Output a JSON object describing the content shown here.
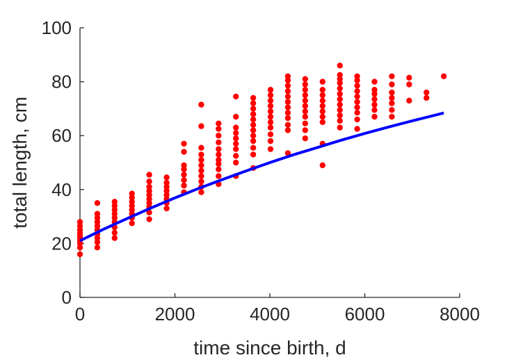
{
  "chart_data": {
    "type": "scatter",
    "title": "",
    "xlabel": "time since birth, d",
    "ylabel": "total length, cm",
    "xlim": [
      0,
      8000
    ],
    "ylim": [
      0,
      100
    ],
    "xticks": [
      0,
      2000,
      4000,
      6000,
      8000
    ],
    "yticks": [
      0,
      20,
      40,
      60,
      80,
      100
    ],
    "x_tick_labels": [
      "0",
      "2000",
      "4000",
      "6000",
      "8000"
    ],
    "y_tick_labels": [
      "0",
      "20",
      "40",
      "60",
      "80",
      "100"
    ],
    "grid": false,
    "legend": "none",
    "colors": {
      "points": "#ff0000",
      "curve": "#0000ff",
      "axes": "#262626",
      "background": "#ffffff"
    },
    "series": [
      {
        "kind": "points",
        "points": [
          [
            0,
            16.0
          ],
          [
            0,
            18.5
          ],
          [
            0,
            20.0
          ],
          [
            0,
            21.0
          ],
          [
            0,
            22.0
          ],
          [
            0,
            23.0
          ],
          [
            0,
            24.0
          ],
          [
            0,
            25.0
          ],
          [
            0,
            26.5
          ],
          [
            0,
            28.0
          ],
          [
            365,
            18.5
          ],
          [
            365,
            20.5
          ],
          [
            365,
            22.0
          ],
          [
            365,
            23.5
          ],
          [
            365,
            25.0
          ],
          [
            365,
            26.5
          ],
          [
            365,
            28.0
          ],
          [
            365,
            29.5
          ],
          [
            365,
            31.0
          ],
          [
            365,
            35.0
          ],
          [
            730,
            22.0
          ],
          [
            730,
            24.0
          ],
          [
            730,
            26.0
          ],
          [
            730,
            28.0
          ],
          [
            730,
            29.5
          ],
          [
            730,
            31.0
          ],
          [
            730,
            32.5
          ],
          [
            730,
            34.0
          ],
          [
            730,
            35.5
          ],
          [
            1095,
            27.5
          ],
          [
            1095,
            29.5
          ],
          [
            1095,
            31.0
          ],
          [
            1095,
            32.5
          ],
          [
            1095,
            34.0
          ],
          [
            1095,
            35.5
          ],
          [
            1095,
            37.0
          ],
          [
            1095,
            38.5
          ],
          [
            1460,
            29.0
          ],
          [
            1460,
            31.5
          ],
          [
            1460,
            33.5
          ],
          [
            1460,
            35.0
          ],
          [
            1460,
            36.5
          ],
          [
            1460,
            38.0
          ],
          [
            1460,
            39.5
          ],
          [
            1460,
            41.0
          ],
          [
            1460,
            43.0
          ],
          [
            1460,
            45.5
          ],
          [
            1825,
            33.0
          ],
          [
            1825,
            35.0
          ],
          [
            1825,
            36.5
          ],
          [
            1825,
            38.0
          ],
          [
            1825,
            39.5
          ],
          [
            1825,
            41.0
          ],
          [
            1825,
            42.5
          ],
          [
            1825,
            44.5
          ],
          [
            2190,
            39.0
          ],
          [
            2190,
            41.5
          ],
          [
            2190,
            43.5
          ],
          [
            2190,
            45.5
          ],
          [
            2190,
            47.5
          ],
          [
            2190,
            49.0
          ],
          [
            2190,
            54.0
          ],
          [
            2190,
            57.0
          ],
          [
            2555,
            39.0
          ],
          [
            2555,
            41.0
          ],
          [
            2555,
            43.0
          ],
          [
            2555,
            45.0
          ],
          [
            2555,
            47.0
          ],
          [
            2555,
            49.0
          ],
          [
            2555,
            51.0
          ],
          [
            2555,
            53.0
          ],
          [
            2555,
            55.5
          ],
          [
            2555,
            63.5
          ],
          [
            2555,
            71.5
          ],
          [
            2920,
            42.0
          ],
          [
            2920,
            45.0
          ],
          [
            2920,
            47.5
          ],
          [
            2920,
            49.5
          ],
          [
            2920,
            51.0
          ],
          [
            2920,
            53.0
          ],
          [
            2920,
            55.0
          ],
          [
            2920,
            57.5
          ],
          [
            2920,
            60.0
          ],
          [
            2920,
            62.5
          ],
          [
            2920,
            64.5
          ],
          [
            3285,
            45.0
          ],
          [
            3285,
            50.0
          ],
          [
            3285,
            52.5
          ],
          [
            3285,
            55.0
          ],
          [
            3285,
            57.0
          ],
          [
            3285,
            59.0
          ],
          [
            3285,
            61.0
          ],
          [
            3285,
            63.0
          ],
          [
            3285,
            67.0
          ],
          [
            3285,
            74.5
          ],
          [
            3650,
            48.0
          ],
          [
            3650,
            53.0
          ],
          [
            3650,
            55.5
          ],
          [
            3650,
            58.0
          ],
          [
            3650,
            60.0
          ],
          [
            3650,
            62.0
          ],
          [
            3650,
            64.0
          ],
          [
            3650,
            66.0
          ],
          [
            3650,
            68.0
          ],
          [
            3650,
            70.0
          ],
          [
            3650,
            72.0
          ],
          [
            3650,
            74.0
          ],
          [
            4015,
            55.0
          ],
          [
            4015,
            58.0
          ],
          [
            4015,
            60.5
          ],
          [
            4015,
            63.0
          ],
          [
            4015,
            65.0
          ],
          [
            4015,
            67.0
          ],
          [
            4015,
            69.0
          ],
          [
            4015,
            71.0
          ],
          [
            4015,
            73.0
          ],
          [
            4015,
            75.0
          ],
          [
            4015,
            77.0
          ],
          [
            4380,
            53.5
          ],
          [
            4380,
            62.0
          ],
          [
            4380,
            64.0
          ],
          [
            4380,
            66.5
          ],
          [
            4380,
            68.5
          ],
          [
            4380,
            70.5
          ],
          [
            4380,
            72.5
          ],
          [
            4380,
            74.5
          ],
          [
            4380,
            76.5
          ],
          [
            4380,
            78.5
          ],
          [
            4380,
            80.5
          ],
          [
            4380,
            82.0
          ],
          [
            4745,
            59.0
          ],
          [
            4745,
            62.0
          ],
          [
            4745,
            64.5
          ],
          [
            4745,
            67.0
          ],
          [
            4745,
            69.0
          ],
          [
            4745,
            71.0
          ],
          [
            4745,
            73.0
          ],
          [
            4745,
            75.0
          ],
          [
            4745,
            77.0
          ],
          [
            4745,
            79.0
          ],
          [
            4745,
            81.0
          ],
          [
            5110,
            49.0
          ],
          [
            5110,
            57.0
          ],
          [
            5110,
            65.0
          ],
          [
            5110,
            67.0
          ],
          [
            5110,
            69.0
          ],
          [
            5110,
            71.0
          ],
          [
            5110,
            73.0
          ],
          [
            5110,
            75.0
          ],
          [
            5110,
            77.0
          ],
          [
            5110,
            80.0
          ],
          [
            5475,
            63.0
          ],
          [
            5475,
            65.5
          ],
          [
            5475,
            67.5
          ],
          [
            5475,
            69.5
          ],
          [
            5475,
            71.5
          ],
          [
            5475,
            73.5
          ],
          [
            5475,
            75.5
          ],
          [
            5475,
            77.5
          ],
          [
            5475,
            79.5
          ],
          [
            5475,
            81.0
          ],
          [
            5475,
            82.5
          ],
          [
            5475,
            86.0
          ],
          [
            5840,
            62.5
          ],
          [
            5840,
            66.0
          ],
          [
            5840,
            68.5
          ],
          [
            5840,
            70.5
          ],
          [
            5840,
            72.5
          ],
          [
            5840,
            74.5
          ],
          [
            5840,
            76.5
          ],
          [
            5840,
            78.5
          ],
          [
            5840,
            80.5
          ],
          [
            5840,
            82.0
          ],
          [
            6205,
            67.0
          ],
          [
            6205,
            69.5
          ],
          [
            6205,
            71.5
          ],
          [
            6205,
            73.5
          ],
          [
            6205,
            75.5
          ],
          [
            6205,
            77.0
          ],
          [
            6205,
            80.0
          ],
          [
            6570,
            67.0
          ],
          [
            6570,
            69.5
          ],
          [
            6570,
            72.0
          ],
          [
            6570,
            74.0
          ],
          [
            6570,
            76.0
          ],
          [
            6570,
            79.0
          ],
          [
            6570,
            82.0
          ],
          [
            6935,
            73.0
          ],
          [
            6935,
            79.0
          ],
          [
            6935,
            81.5
          ],
          [
            7300,
            74.0
          ],
          [
            7300,
            76.0
          ],
          [
            7665,
            82.0
          ]
        ]
      },
      {
        "kind": "curve",
        "points": [
          [
            0,
            21.0
          ],
          [
            500,
            25.3
          ],
          [
            1000,
            29.3
          ],
          [
            1500,
            33.2
          ],
          [
            2000,
            36.9
          ],
          [
            2500,
            40.4
          ],
          [
            3000,
            43.7
          ],
          [
            3500,
            46.9
          ],
          [
            4000,
            50.0
          ],
          [
            4500,
            52.9
          ],
          [
            5000,
            55.6
          ],
          [
            5500,
            58.3
          ],
          [
            6000,
            60.8
          ],
          [
            6500,
            63.2
          ],
          [
            7000,
            65.5
          ],
          [
            7665,
            68.4
          ]
        ]
      }
    ]
  }
}
